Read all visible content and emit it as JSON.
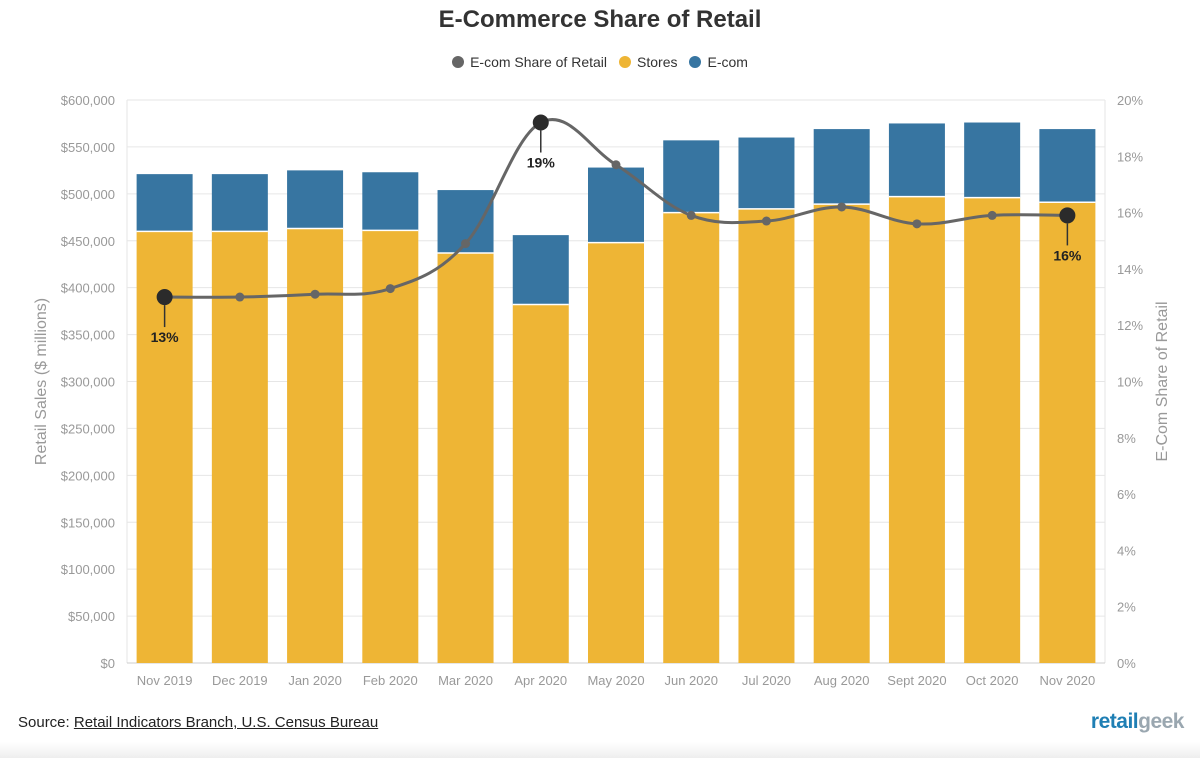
{
  "colors": {
    "stores": "#eeb535",
    "ecom": "#3775a1",
    "share_line": "#666666",
    "share_marker": "#2b2b2b",
    "axis_text": "#999999",
    "grid": "#e6e6e6"
  },
  "chart_data": {
    "type": "bar",
    "title": "E-Commerce Share of Retail",
    "legend": [
      "E-com Share of Retail",
      "Stores",
      "E-com"
    ],
    "legend_position": "top",
    "categories": [
      "Nov 2019",
      "Dec 2019",
      "Jan 2020",
      "Feb 2020",
      "Mar 2020",
      "Apr 2020",
      "May 2020",
      "Jun 2020",
      "Jul 2020",
      "Aug 2020",
      "Sept 2020",
      "Oct 2020",
      "Nov 2020"
    ],
    "stacked": true,
    "series": [
      {
        "name": "Stores",
        "values": [
          460000,
          460000,
          463000,
          461000,
          437000,
          382000,
          448000,
          480000,
          484000,
          489000,
          497000,
          496000,
          491000
        ]
      },
      {
        "name": "E-com",
        "values": [
          61000,
          61000,
          62000,
          62000,
          67000,
          74000,
          80000,
          77000,
          76000,
          80000,
          78000,
          80000,
          78000
        ]
      }
    ],
    "share_line": {
      "name": "E-com Share of Retail",
      "axis": "right",
      "values": [
        13.0,
        13.0,
        13.1,
        13.3,
        14.9,
        19.2,
        17.7,
        15.9,
        15.7,
        16.2,
        15.6,
        15.9,
        15.9
      ],
      "labeled_points": [
        {
          "index": 0,
          "label": "13%"
        },
        {
          "index": 5,
          "label": "19%"
        },
        {
          "index": 12,
          "label": "16%"
        }
      ]
    },
    "ylabel": "Retail Sales ($ millions)",
    "ylim": [
      0,
      600000
    ],
    "y_ticks": [
      "$0",
      "$50,000",
      "$100,000",
      "$150,000",
      "$200,000",
      "$250,000",
      "$300,000",
      "$350,000",
      "$400,000",
      "$450,000",
      "$500,000",
      "$550,000",
      "$600,000"
    ],
    "y2label": "E-Com Share of Retail",
    "y2lim": [
      0,
      20
    ],
    "y2_ticks": [
      "0%",
      "2%",
      "4%",
      "6%",
      "8%",
      "10%",
      "12%",
      "14%",
      "16%",
      "18%",
      "20%"
    ],
    "grid": true
  },
  "footer": {
    "source_prefix": "Source: ",
    "source_link": "Retail Indicators Branch, U.S. Census Bureau",
    "logo_part1": "retail",
    "logo_part2": "geek"
  }
}
